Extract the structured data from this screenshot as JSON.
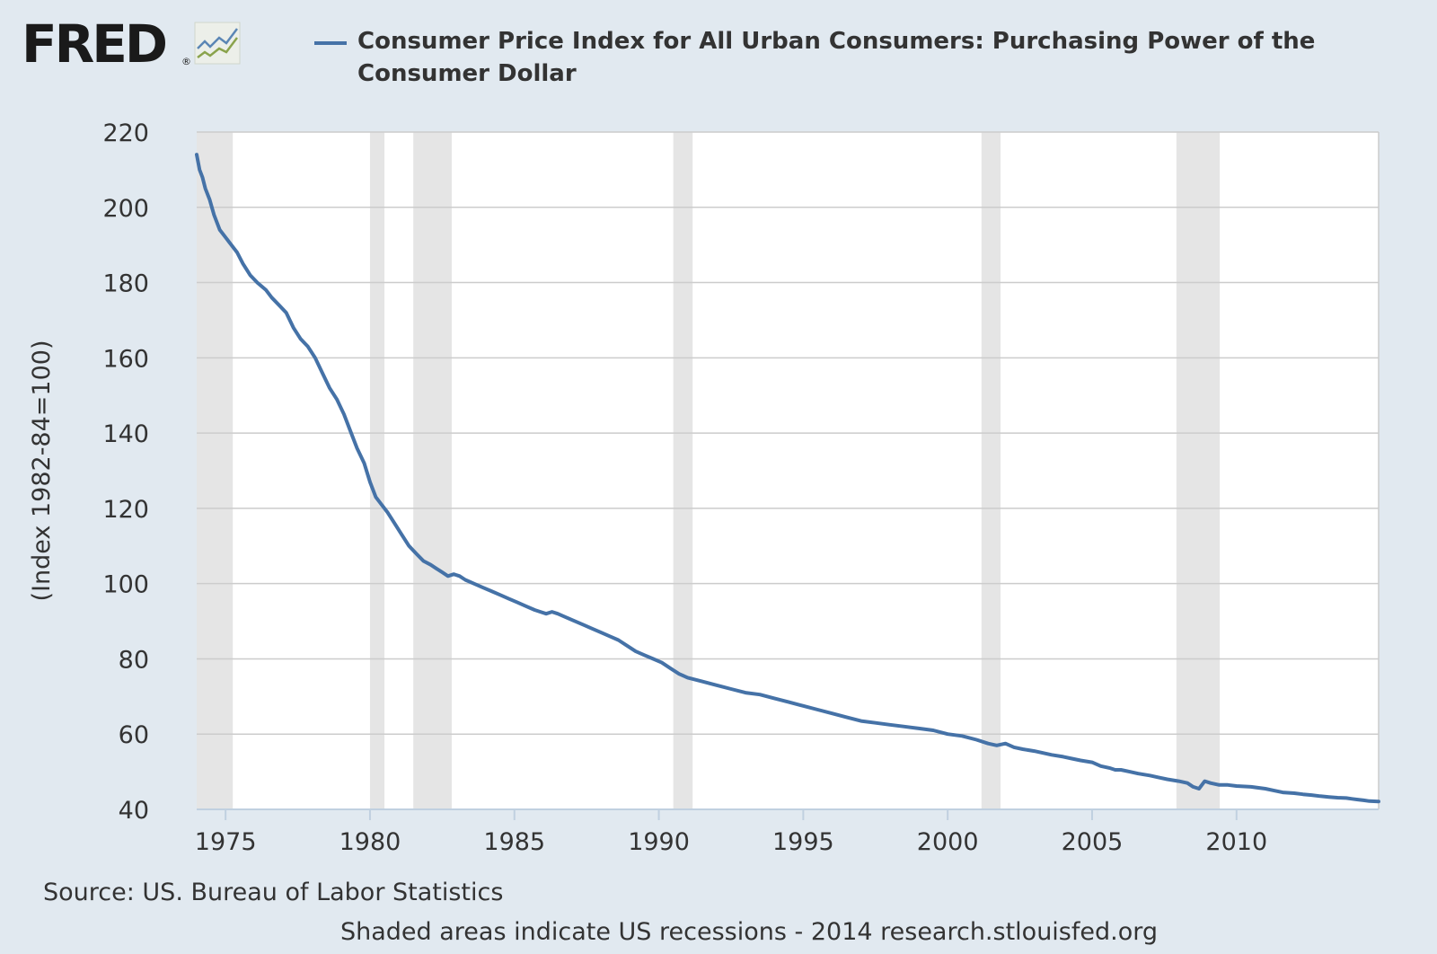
{
  "brand": {
    "logo_text": "FRED",
    "registered_mark": "®"
  },
  "legend": {
    "label": "Consumer Price Index for All Urban Consumers: Purchasing Power of the Consumer Dollar"
  },
  "source": "Source: US. Bureau of Labor Statistics",
  "footer": "Shaded areas indicate US recessions - 2014 research.stlouisfed.org",
  "colors": {
    "series": "#4572a7",
    "background": "#e1e9f0",
    "plot_background": "#ffffff",
    "recession": "#e5e5e5",
    "grid": "#cccccc"
  },
  "chart_data": {
    "type": "line",
    "title": "Consumer Price Index for All Urban Consumers: Purchasing Power of the Consumer Dollar",
    "xlabel": "",
    "ylabel": "(Index 1982-84=100)",
    "xlim": [
      1974.0,
      2014.92
    ],
    "ylim": [
      40,
      220
    ],
    "xticks": [
      1975,
      1980,
      1985,
      1990,
      1995,
      2000,
      2005,
      2010
    ],
    "yticks": [
      40,
      60,
      80,
      100,
      120,
      140,
      160,
      180,
      200,
      220
    ],
    "grid": true,
    "legend": "top",
    "recessions": [
      [
        1974.0,
        1975.25
      ],
      [
        1980.0,
        1980.5
      ],
      [
        1981.5,
        1982.83
      ],
      [
        1990.5,
        1991.17
      ],
      [
        2001.17,
        2001.83
      ],
      [
        2007.92,
        2009.42
      ]
    ],
    "series": [
      {
        "name": "Consumer Price Index for All Urban Consumers: Purchasing Power of the Consumer Dollar",
        "x": [
          1974.0,
          1974.1,
          1974.2,
          1974.3,
          1974.45,
          1974.6,
          1974.8,
          1975.0,
          1975.2,
          1975.4,
          1975.6,
          1975.85,
          1976.1,
          1976.4,
          1976.6,
          1976.85,
          1977.1,
          1977.35,
          1977.6,
          1977.85,
          1978.1,
          1978.35,
          1978.6,
          1978.85,
          1979.1,
          1979.3,
          1979.55,
          1979.8,
          1980.0,
          1980.2,
          1980.4,
          1980.6,
          1980.85,
          1981.1,
          1981.35,
          1981.6,
          1981.85,
          1982.1,
          1982.3,
          1982.5,
          1982.7,
          1982.9,
          1983.1,
          1983.3,
          1983.6,
          1983.9,
          1984.2,
          1984.5,
          1984.8,
          1985.1,
          1985.4,
          1985.7,
          1985.9,
          1986.1,
          1986.3,
          1986.5,
          1986.8,
          1987.1,
          1987.4,
          1987.7,
          1988.0,
          1988.3,
          1988.6,
          1988.9,
          1989.2,
          1989.5,
          1989.8,
          1990.1,
          1990.4,
          1990.7,
          1991.0,
          1991.5,
          1992.0,
          1992.5,
          1993.0,
          1993.5,
          1994.0,
          1994.5,
          1995.0,
          1995.5,
          1996.0,
          1996.5,
          1997.0,
          1997.5,
          1998.0,
          1998.5,
          1999.0,
          1999.5,
          2000.0,
          2000.5,
          2001.0,
          2001.4,
          2001.7,
          2002.0,
          2002.3,
          2002.6,
          2003.0,
          2003.3,
          2003.6,
          2004.0,
          2004.3,
          2004.6,
          2005.0,
          2005.3,
          2005.6,
          2005.8,
          2006.0,
          2006.3,
          2006.6,
          2007.0,
          2007.3,
          2007.6,
          2008.0,
          2008.3,
          2008.5,
          2008.7,
          2008.9,
          2009.1,
          2009.4,
          2009.7,
          2010.0,
          2010.5,
          2011.0,
          2011.3,
          2011.6,
          2012.0,
          2012.3,
          2012.6,
          2012.9,
          2013.2,
          2013.5,
          2013.8,
          2014.0,
          2014.2,
          2014.4,
          2014.6,
          2014.92
        ],
        "values": [
          214,
          210,
          208,
          205,
          202,
          198,
          194,
          192,
          190,
          188,
          185,
          182,
          180,
          178,
          176,
          174,
          172,
          168,
          165,
          163,
          160,
          156,
          152,
          149,
          145,
          141,
          136,
          132,
          127,
          123,
          121,
          119,
          116,
          113,
          110,
          108,
          106,
          105,
          104,
          103,
          102,
          102.5,
          102,
          101,
          100,
          99,
          98,
          97,
          96,
          95,
          94,
          93,
          92.5,
          92,
          92.5,
          92,
          91,
          90,
          89,
          88,
          87,
          86,
          85,
          83.5,
          82,
          81,
          80,
          79,
          77.5,
          76,
          75,
          74,
          73,
          72,
          71,
          70.5,
          69.5,
          68.5,
          67.5,
          66.5,
          65.5,
          64.5,
          63.5,
          63,
          62.5,
          62,
          61.5,
          61,
          60,
          59.5,
          58.5,
          57.5,
          57,
          57.5,
          56.5,
          56,
          55.5,
          55,
          54.5,
          54,
          53.5,
          53,
          52.5,
          51.5,
          51,
          50.5,
          50.5,
          50,
          49.5,
          49,
          48.5,
          48,
          47.5,
          47,
          46,
          45.5,
          47.5,
          47,
          46.5,
          46.5,
          46.2,
          46,
          45.5,
          45,
          44.5,
          44.3,
          44,
          43.8,
          43.5,
          43.3,
          43.1,
          43,
          42.8,
          42.6,
          42.4,
          42.2,
          42.1
        ]
      }
    ]
  }
}
